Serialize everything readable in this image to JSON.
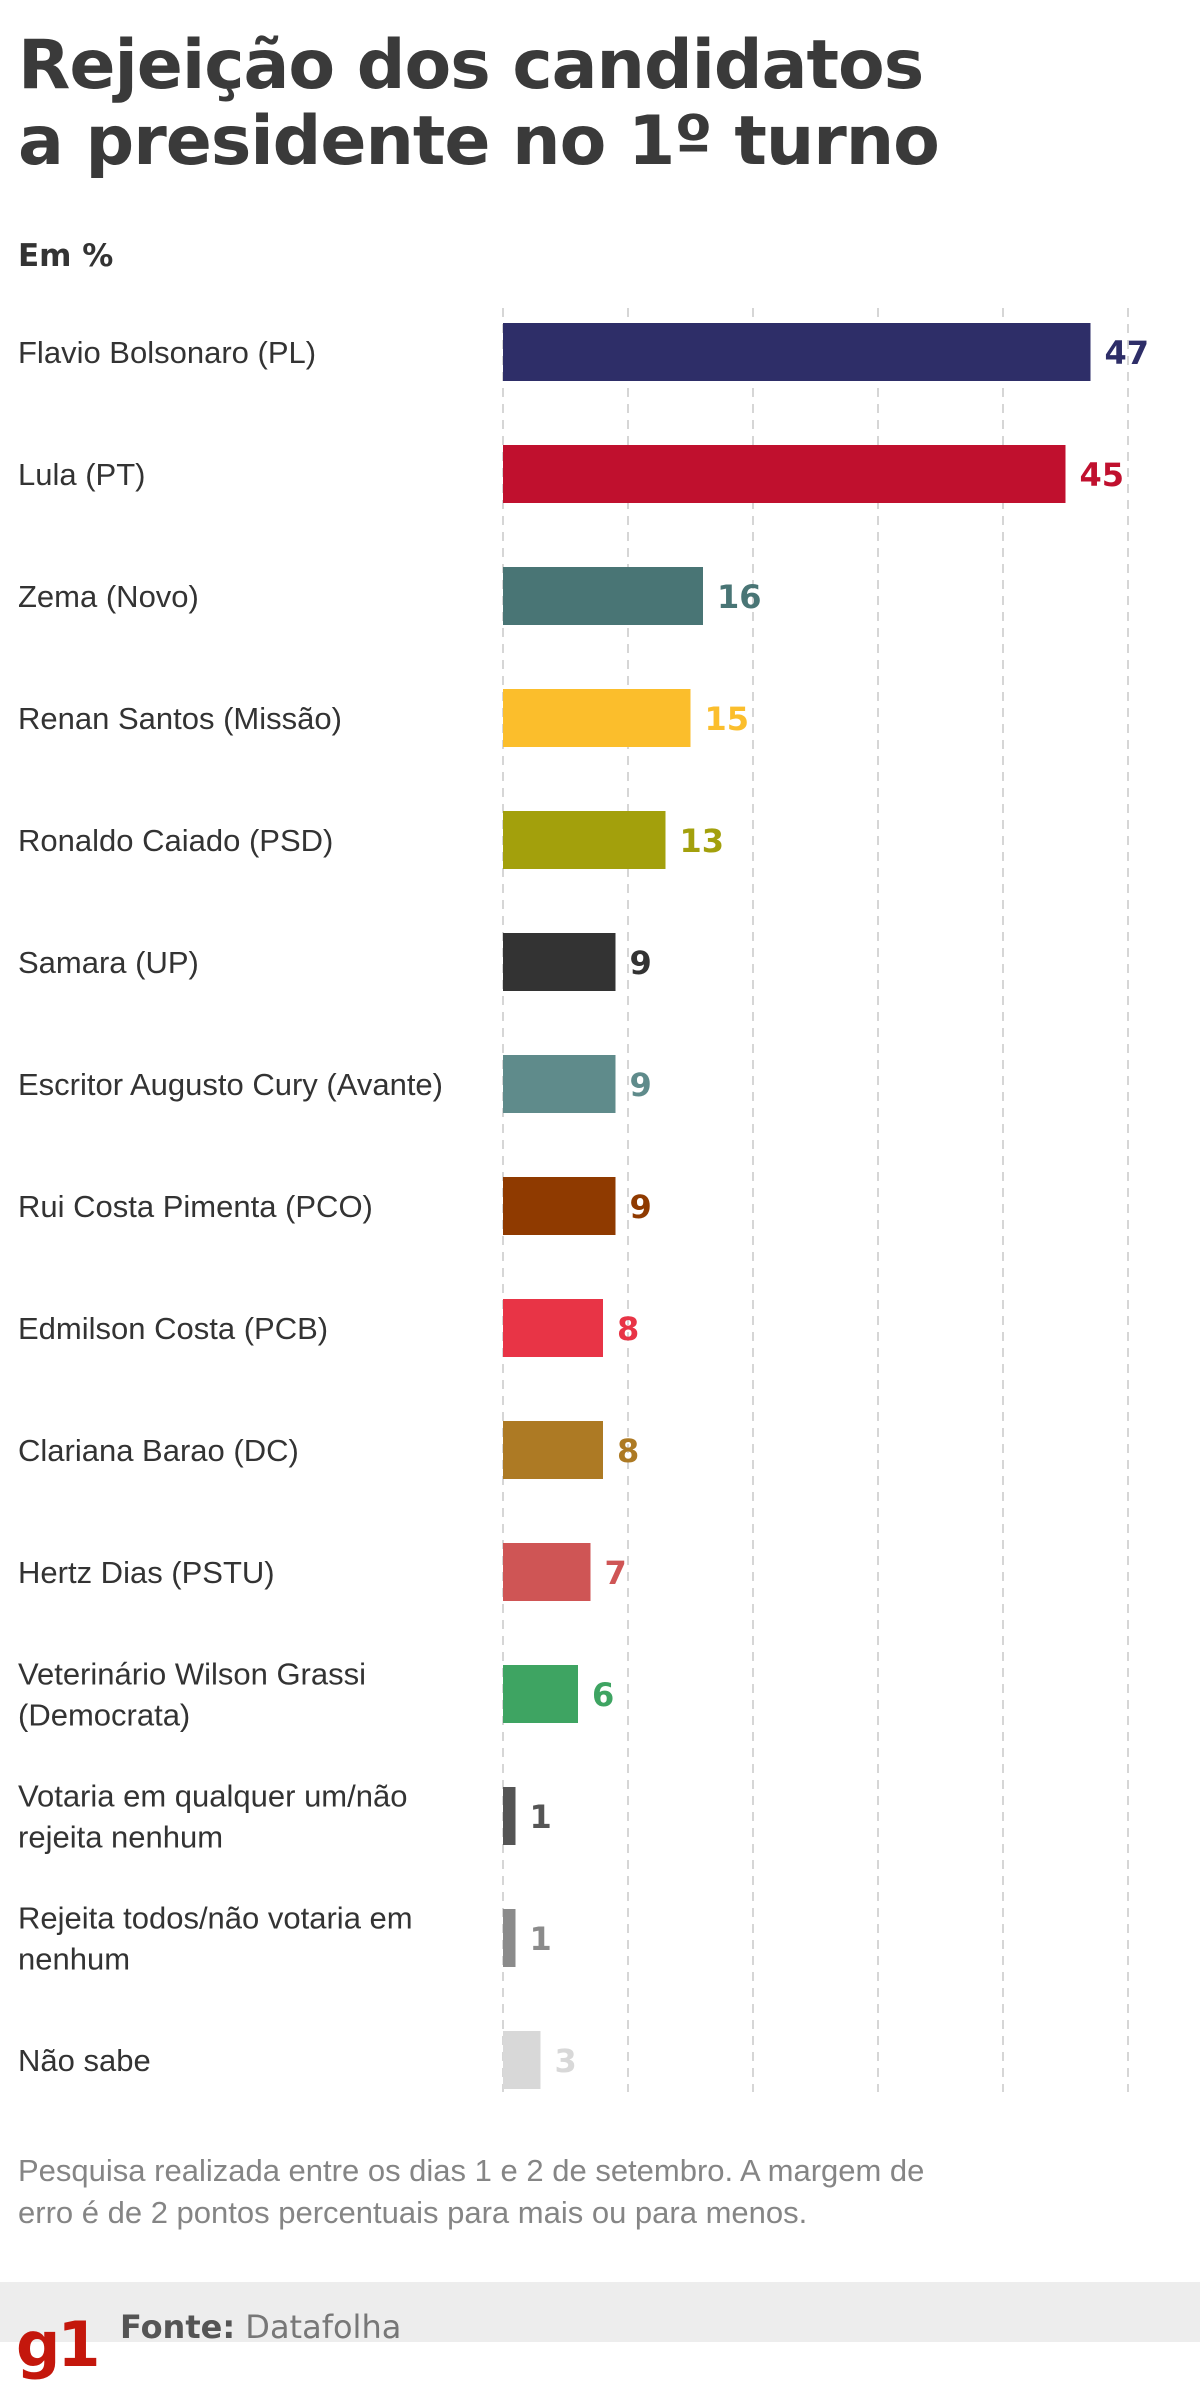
{
  "header": {
    "title_line1": "Rejeição dos candidatos",
    "title_line2": "a presidente no 1º turno",
    "unit": "Em %"
  },
  "chart_data": {
    "type": "bar",
    "orientation": "horizontal",
    "title": "Rejeição dos candidatos a presidente no 1º turno",
    "unit": "Em %",
    "xlim": [
      0,
      50
    ],
    "grid": true,
    "categories": [
      "Flavio Bolsonaro (PL)",
      "Lula (PT)",
      "Zema (Novo)",
      "Renan Santos (Missão)",
      "Ronaldo Caiado (PSD)",
      "Samara (UP)",
      "Escritor Augusto Cury (Avante)",
      "Rui Costa Pimenta (PCO)",
      "Edmilson Costa (PCB)",
      "Clariana Barao (DC)",
      "Hertz Dias (PSTU)",
      "Veterinário Wilson Grassi (Democrata)",
      "Votaria em qualquer um/não rejeita nenhum",
      "Rejeita todos/não votaria em nenhum",
      "Não sabe"
    ],
    "label_lines": [
      [
        "Flavio Bolsonaro (PL)"
      ],
      [
        "Lula (PT)"
      ],
      [
        "Zema (Novo)"
      ],
      [
        "Renan Santos (Missão)"
      ],
      [
        "Ronaldo Caiado (PSD)"
      ],
      [
        "Samara (UP)"
      ],
      [
        "Escritor Augusto Cury (Avante)"
      ],
      [
        "Rui Costa Pimenta (PCO)"
      ],
      [
        "Edmilson Costa (PCB)"
      ],
      [
        "Clariana Barao (DC)"
      ],
      [
        "Hertz Dias (PSTU)"
      ],
      [
        "Veterinário Wilson Grassi",
        "(Democrata)"
      ],
      [
        "Votaria em qualquer um/não",
        "rejeita nenhum"
      ],
      [
        "Rejeita todos/não votaria em",
        "nenhum"
      ],
      [
        "Não sabe"
      ]
    ],
    "values": [
      47,
      45,
      16,
      15,
      13,
      9,
      9,
      9,
      8,
      8,
      7,
      6,
      1,
      1,
      3
    ],
    "colors": [
      "#2e2e68",
      "#c0102e",
      "#497575",
      "#fbbe2c",
      "#a3a00c",
      "#333333",
      "#5f8b8b",
      "#8f3a00",
      "#e83446",
      "#ad7a24",
      "#cf5555",
      "#3ea462",
      "#555555",
      "#8b8b8b",
      "#d8d8d8"
    ]
  },
  "footnote": "Pesquisa realizada entre os dias 1 e 2 de setembro. A margem de erro é de 2 pontos percentuais para mais ou para menos.",
  "footer": {
    "logo": "g1",
    "source_label": "Fonte:",
    "source_value": "Datafolha"
  }
}
